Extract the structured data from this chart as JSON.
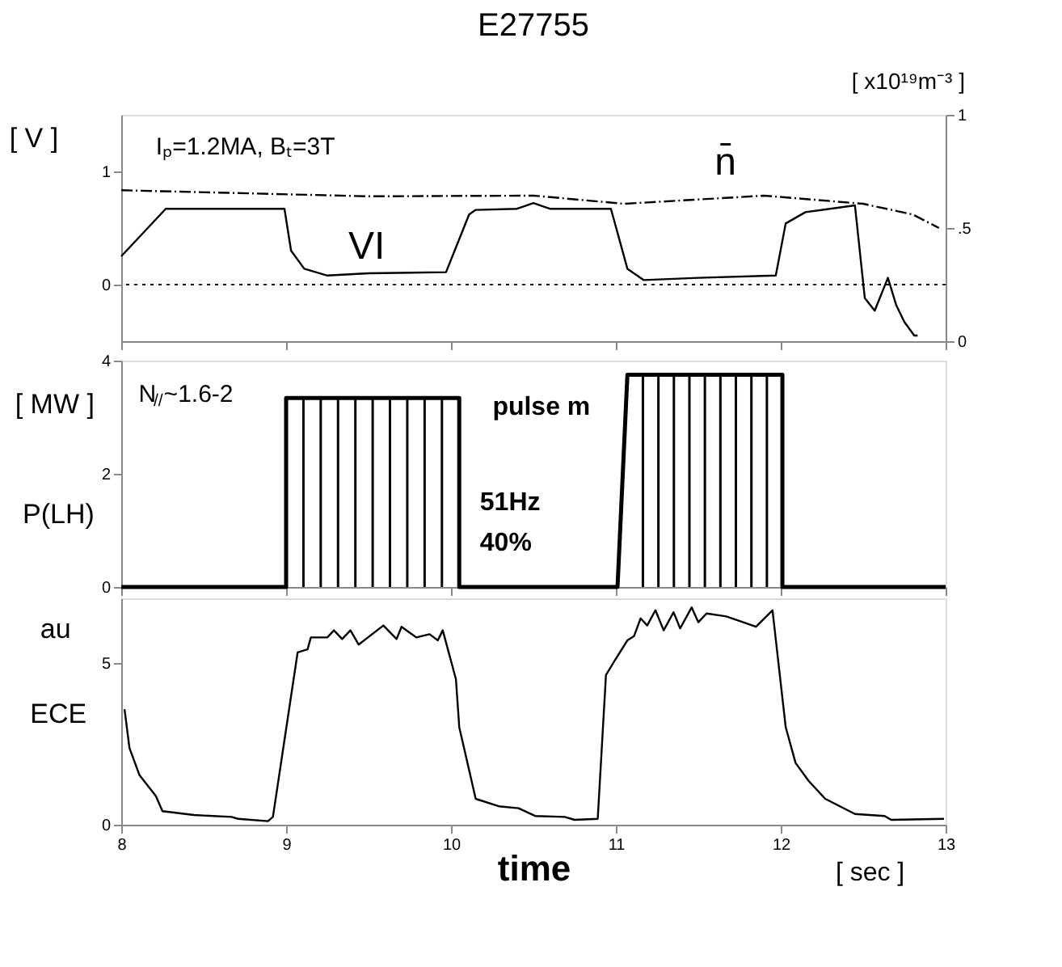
{
  "chart_data": [
    {
      "type": "line",
      "title": "E27755",
      "ylabel": "[ V ]",
      "y2label": "[ x10¹⁹m⁻³ ]",
      "xlim": [
        8,
        13
      ],
      "xticks": [
        8,
        9,
        10,
        11,
        12,
        13
      ],
      "ylim": [
        -0.5,
        1.5
      ],
      "yticks": [
        0,
        1
      ],
      "y2lim": [
        0,
        1
      ],
      "y2ticks": [
        0,
        {
          "value": 0.5,
          "label": ".5"
        },
        1
      ],
      "tick_labels": "y",
      "grid": false,
      "annotations": [
        "Iₚ=1.2MA, Bₜ=3T"
      ],
      "ref_lines": [
        {
          "axis": "y",
          "value": 0,
          "line_style": "dotted",
          "color": "#000000"
        }
      ],
      "series": [
        {
          "name": "VI",
          "color": "#000000",
          "line_style": "solid",
          "x": [
            8.0,
            8.27,
            8.99,
            9.03,
            9.11,
            9.25,
            9.5,
            9.97,
            10.11,
            10.15,
            10.4,
            10.5,
            10.6,
            10.97,
            11.07,
            11.17,
            11.5,
            11.97,
            12.03,
            12.15,
            12.45,
            12.51,
            12.57,
            12.65,
            12.7,
            12.75,
            12.81,
            12.83
          ],
          "values": [
            0.25,
            0.67,
            0.67,
            0.3,
            0.14,
            0.08,
            0.1,
            0.11,
            0.62,
            0.66,
            0.67,
            0.72,
            0.67,
            0.67,
            0.14,
            0.04,
            0.06,
            0.08,
            0.54,
            0.64,
            0.7,
            -0.12,
            -0.23,
            0.06,
            -0.18,
            -0.33,
            -0.45,
            -0.45
          ]
        },
        {
          "name": "n̄",
          "color": "#000000",
          "axis": "y2",
          "line_style": "dashed",
          "x": [
            8.0,
            9.5,
            10.5,
            11.05,
            11.9,
            12.5,
            12.8,
            12.96
          ],
          "values": [
            0.667,
            0.64,
            0.643,
            0.607,
            0.643,
            0.607,
            0.56,
            0.5
          ]
        }
      ]
    },
    {
      "type": "area",
      "ylabel": "[ MW ]",
      "xlim": [
        8,
        13
      ],
      "xticks": [
        8,
        9,
        10,
        11,
        12,
        13
      ],
      "ylim": [
        0,
        4
      ],
      "yticks": [
        0,
        2,
        4
      ],
      "tick_labels": "y",
      "grid": false,
      "annotations": [
        "P(LH)",
        "N$_{//}$~1.6-2",
        "pulse m",
        "51Hz",
        "40%"
      ],
      "series": [
        {
          "color": "#000000",
          "x": [
            8.0,
            9.0,
            9.0,
            10.05,
            10.05,
            11.01,
            11.07,
            12.01,
            12.01,
            13.0
          ],
          "values": [
            0,
            0,
            3.34,
            3.34,
            0,
            0,
            3.75,
            3.75,
            0,
            0
          ]
        }
      ]
    },
    {
      "type": "line",
      "ylabel": "au",
      "xlabel": "time",
      "xlim": [
        8,
        13
      ],
      "xticks": [
        8,
        9,
        10,
        11,
        12,
        13
      ],
      "ylim": [
        0,
        7
      ],
      "yticks": [
        0,
        5
      ],
      "grid": false,
      "annotations": [
        "ECE",
        "[ sec ]"
      ],
      "series": [
        {
          "color": "#000000",
          "line_style": "solid",
          "x": [
            8.02,
            8.05,
            8.11,
            8.21,
            8.25,
            8.44,
            8.67,
            8.71,
            8.89,
            8.92,
            9.07,
            9.13,
            9.15,
            9.25,
            9.29,
            9.34,
            9.39,
            9.44,
            9.59,
            9.67,
            9.7,
            9.79,
            9.87,
            9.92,
            9.95,
            10.03,
            10.05,
            10.15,
            10.29,
            10.41,
            10.51,
            10.69,
            10.75,
            10.89,
            10.94,
            10.99,
            11.07,
            11.11,
            11.15,
            11.19,
            11.24,
            11.29,
            11.35,
            11.39,
            11.46,
            11.5,
            11.55,
            11.67,
            11.85,
            11.95,
            12.03,
            12.09,
            12.17,
            12.27,
            12.45,
            12.63,
            12.67,
            12.99
          ],
          "values": [
            3.57,
            2.37,
            1.54,
            0.89,
            0.42,
            0.3,
            0.24,
            0.18,
            0.11,
            0.24,
            5.33,
            5.42,
            5.79,
            5.79,
            6.01,
            5.74,
            6.01,
            5.57,
            6.16,
            5.74,
            6.12,
            5.79,
            5.89,
            5.7,
            6.01,
            4.5,
            3.02,
            0.8,
            0.57,
            0.51,
            0.27,
            0.24,
            0.15,
            0.18,
            4.63,
            5.05,
            5.7,
            5.83,
            6.38,
            6.16,
            6.63,
            6.01,
            6.57,
            6.07,
            6.72,
            6.26,
            6.53,
            6.44,
            6.12,
            6.63,
            3.02,
            1.91,
            1.35,
            0.8,
            0.33,
            0.27,
            0.15,
            0.18
          ]
        }
      ]
    }
  ]
}
